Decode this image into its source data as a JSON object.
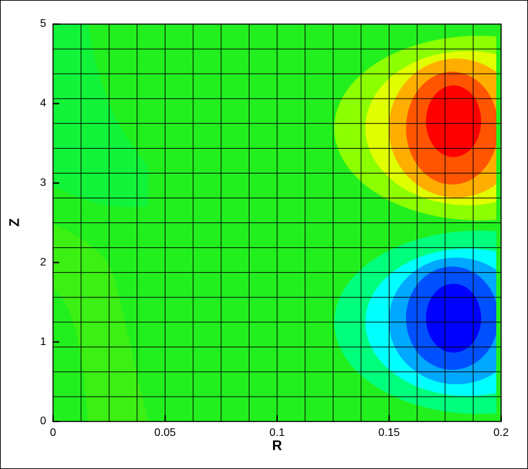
{
  "chart_data": {
    "type": "contour",
    "xlabel": "R",
    "ylabel": "Z",
    "xlim": [
      0,
      0.2
    ],
    "ylim": [
      0,
      5
    ],
    "xticks": [
      0,
      0.05,
      0.1,
      0.15,
      0.2
    ],
    "yticks": [
      0,
      1,
      2,
      3,
      4,
      5
    ],
    "grid": true
  }
}
